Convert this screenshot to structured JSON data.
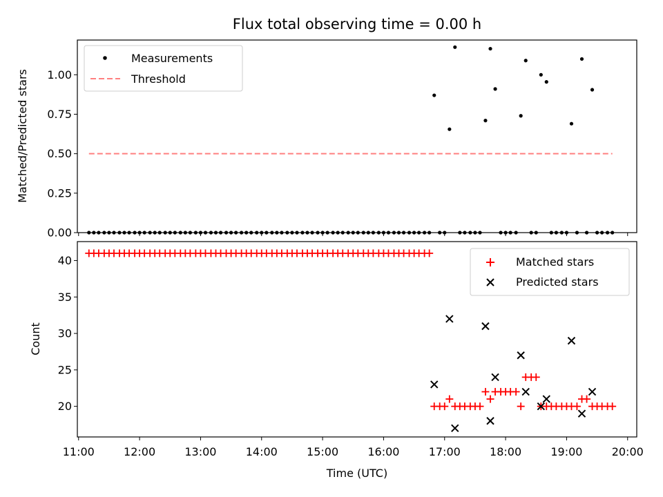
{
  "title": "Flux total observing time = 0.00 h",
  "chart_data": [
    {
      "type": "scatter",
      "ylabel": "Matched/Predicted stars",
      "ylim": [
        0,
        1.22
      ],
      "yticks": [
        "0.00",
        "0.25",
        "0.50",
        "0.75",
        "1.00"
      ],
      "legend_placement": "top-left",
      "series": [
        {
          "name": "Measurements",
          "marker": "dot",
          "color": "#000000",
          "x": [
            11.17,
            11.25,
            11.33,
            11.42,
            11.5,
            11.58,
            11.67,
            11.75,
            11.83,
            11.92,
            12.0,
            12.08,
            12.17,
            12.25,
            12.33,
            12.42,
            12.5,
            12.58,
            12.67,
            12.75,
            12.83,
            12.92,
            13.0,
            13.08,
            13.17,
            13.25,
            13.33,
            13.42,
            13.5,
            13.58,
            13.67,
            13.75,
            13.83,
            13.92,
            14.0,
            14.08,
            14.17,
            14.25,
            14.33,
            14.42,
            14.5,
            14.58,
            14.67,
            14.75,
            14.83,
            14.92,
            15.0,
            15.08,
            15.17,
            15.25,
            15.33,
            15.42,
            15.5,
            15.58,
            15.67,
            15.75,
            15.83,
            15.92,
            16.0,
            16.08,
            16.17,
            16.25,
            16.33,
            16.42,
            16.5,
            16.58,
            16.67,
            16.75,
            16.83,
            16.92,
            17.0,
            17.08,
            17.17,
            17.25,
            17.33,
            17.42,
            17.5,
            17.58,
            17.67,
            17.75,
            17.83,
            17.92,
            18.0,
            18.08,
            18.17,
            18.25,
            18.33,
            18.42,
            18.5,
            18.58,
            18.67,
            18.75,
            18.83,
            18.92,
            19.0,
            19.08,
            19.17,
            19.25,
            19.33,
            19.42,
            19.5,
            19.58,
            19.67,
            19.75
          ],
          "y": [
            0,
            0,
            0,
            0,
            0,
            0,
            0,
            0,
            0,
            0,
            0,
            0,
            0,
            0,
            0,
            0,
            0,
            0,
            0,
            0,
            0,
            0,
            0,
            0,
            0,
            0,
            0,
            0,
            0,
            0,
            0,
            0,
            0,
            0,
            0,
            0,
            0,
            0,
            0,
            0,
            0,
            0,
            0,
            0,
            0,
            0,
            0,
            0,
            0,
            0,
            0,
            0,
            0,
            0,
            0,
            0,
            0,
            0,
            0,
            0,
            0,
            0,
            0,
            0,
            0,
            0,
            0,
            0,
            0.87,
            0,
            0,
            0.655,
            1.175,
            0,
            0,
            0,
            0,
            0,
            0.71,
            1.165,
            0.91,
            0,
            0,
            0,
            0,
            0.74,
            1.09,
            0,
            0,
            1.0,
            0.955,
            0,
            0,
            0,
            0,
            0.69,
            0,
            1.1,
            0,
            0.905,
            0,
            0,
            0,
            0
          ]
        },
        {
          "name": "Threshold",
          "marker": "dashed-line",
          "color": "#ff7f7f",
          "x": [
            11.17,
            19.75
          ],
          "y": [
            0.5,
            0.5
          ]
        }
      ]
    },
    {
      "type": "scatter",
      "xlabel": "Time (UTC)",
      "ylabel": "Count",
      "ylim": [
        15.8,
        42.6
      ],
      "yticks": [
        "20",
        "25",
        "30",
        "35",
        "40"
      ],
      "xlim": [
        10.98,
        20.15
      ],
      "xticks": [
        "11:00",
        "12:00",
        "13:00",
        "14:00",
        "15:00",
        "16:00",
        "17:00",
        "18:00",
        "19:00",
        "20:00"
      ],
      "legend_placement": "top-right",
      "series": [
        {
          "name": "Matched stars",
          "marker": "plus",
          "color": "#ff0000",
          "x": [
            11.17,
            11.25,
            11.33,
            11.42,
            11.5,
            11.58,
            11.67,
            11.75,
            11.83,
            11.92,
            12.0,
            12.08,
            12.17,
            12.25,
            12.33,
            12.42,
            12.5,
            12.58,
            12.67,
            12.75,
            12.83,
            12.92,
            13.0,
            13.08,
            13.17,
            13.25,
            13.33,
            13.42,
            13.5,
            13.58,
            13.67,
            13.75,
            13.83,
            13.92,
            14.0,
            14.08,
            14.17,
            14.25,
            14.33,
            14.42,
            14.5,
            14.58,
            14.67,
            14.75,
            14.83,
            14.92,
            15.0,
            15.08,
            15.17,
            15.25,
            15.33,
            15.42,
            15.5,
            15.58,
            15.67,
            15.75,
            15.83,
            15.92,
            16.0,
            16.08,
            16.17,
            16.25,
            16.33,
            16.42,
            16.5,
            16.58,
            16.67,
            16.75,
            16.83,
            16.92,
            17.0,
            17.08,
            17.17,
            17.25,
            17.33,
            17.42,
            17.5,
            17.58,
            17.67,
            17.75,
            17.83,
            17.92,
            18.0,
            18.08,
            18.17,
            18.25,
            18.33,
            18.42,
            18.5,
            18.58,
            18.67,
            18.75,
            18.83,
            18.92,
            19.0,
            19.08,
            19.17,
            19.25,
            19.33,
            19.42,
            19.5,
            19.58,
            19.67,
            19.75
          ],
          "y": [
            41,
            41,
            41,
            41,
            41,
            41,
            41,
            41,
            41,
            41,
            41,
            41,
            41,
            41,
            41,
            41,
            41,
            41,
            41,
            41,
            41,
            41,
            41,
            41,
            41,
            41,
            41,
            41,
            41,
            41,
            41,
            41,
            41,
            41,
            41,
            41,
            41,
            41,
            41,
            41,
            41,
            41,
            41,
            41,
            41,
            41,
            41,
            41,
            41,
            41,
            41,
            41,
            41,
            41,
            41,
            41,
            41,
            41,
            41,
            41,
            41,
            41,
            41,
            41,
            41,
            41,
            41,
            41,
            20,
            20,
            20,
            21,
            20,
            20,
            20,
            20,
            20,
            20,
            22,
            21,
            22,
            22,
            22,
            22,
            22,
            20,
            24,
            24,
            24,
            20,
            20,
            20,
            20,
            20,
            20,
            20,
            20,
            21,
            21,
            20,
            20,
            20,
            20,
            20
          ]
        },
        {
          "name": "Predicted stars",
          "marker": "x",
          "color": "#000000",
          "x": [
            16.83,
            17.08,
            17.17,
            17.67,
            17.75,
            17.83,
            18.25,
            18.33,
            18.58,
            18.67,
            19.08,
            19.25,
            19.42
          ],
          "y": [
            23,
            32,
            17,
            31,
            18,
            24,
            27,
            22,
            20,
            21,
            29,
            19,
            22
          ]
        }
      ]
    }
  ]
}
